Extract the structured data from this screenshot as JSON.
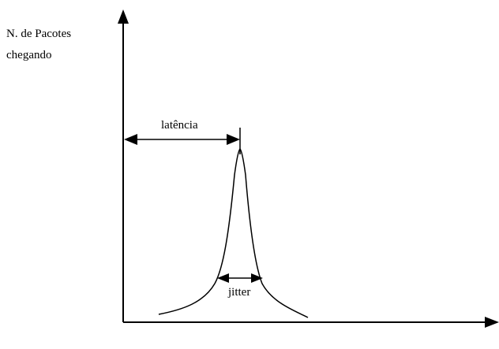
{
  "diagram": {
    "y_axis_label": [
      "N. de Pacotes",
      "chegando"
    ],
    "latency_label": "latência",
    "jitter_label": "jitter"
  },
  "colors": {
    "ink": "#000000",
    "background": "#ffffff"
  }
}
